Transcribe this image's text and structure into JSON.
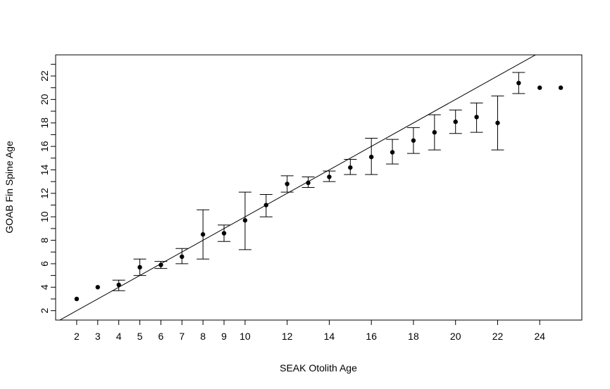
{
  "chart_data": {
    "type": "scatter",
    "title": "",
    "xlabel": "SEAK Otolith Age",
    "ylabel": "GOAB Fin Spine Age",
    "xlim": [
      1,
      26
    ],
    "ylim": [
      1.2,
      23.8
    ],
    "xticks": [
      2,
      3,
      4,
      5,
      6,
      7,
      8,
      9,
      10,
      12,
      14,
      16,
      18,
      20,
      22,
      24
    ],
    "yticks_labeled": [
      2,
      4,
      6,
      8,
      10,
      12,
      14,
      16,
      18,
      20,
      22
    ],
    "yticks_minor": [
      3,
      5,
      7,
      9,
      11,
      13,
      15,
      17,
      19,
      21,
      23
    ],
    "reference_line": {
      "label": "1:1 line",
      "slope": 1,
      "intercept": 0
    },
    "points": [
      {
        "x": 2,
        "y": 3.0,
        "lo": null,
        "hi": null
      },
      {
        "x": 3,
        "y": 4.0,
        "lo": null,
        "hi": null
      },
      {
        "x": 4,
        "y": 4.2,
        "lo": 3.7,
        "hi": 4.6
      },
      {
        "x": 5,
        "y": 5.7,
        "lo": 5.0,
        "hi": 6.4
      },
      {
        "x": 6,
        "y": 5.9,
        "lo": 5.6,
        "hi": 6.2
      },
      {
        "x": 7,
        "y": 6.6,
        "lo": 6.0,
        "hi": 7.3
      },
      {
        "x": 8,
        "y": 8.5,
        "lo": 6.4,
        "hi": 10.6
      },
      {
        "x": 9,
        "y": 8.6,
        "lo": 7.9,
        "hi": 9.3
      },
      {
        "x": 10,
        "y": 9.7,
        "lo": 7.2,
        "hi": 12.1
      },
      {
        "x": 11,
        "y": 11.0,
        "lo": 10.0,
        "hi": 11.9
      },
      {
        "x": 12,
        "y": 12.8,
        "lo": 12.1,
        "hi": 13.5
      },
      {
        "x": 13,
        "y": 12.9,
        "lo": 12.5,
        "hi": 13.4
      },
      {
        "x": 14,
        "y": 13.4,
        "lo": 13.0,
        "hi": 13.9
      },
      {
        "x": 15,
        "y": 14.2,
        "lo": 13.6,
        "hi": 14.9
      },
      {
        "x": 16,
        "y": 15.1,
        "lo": 13.6,
        "hi": 16.7
      },
      {
        "x": 17,
        "y": 15.5,
        "lo": 14.5,
        "hi": 16.6
      },
      {
        "x": 18,
        "y": 16.5,
        "lo": 15.4,
        "hi": 17.6
      },
      {
        "x": 19,
        "y": 17.2,
        "lo": 15.7,
        "hi": 18.7
      },
      {
        "x": 20,
        "y": 18.1,
        "lo": 17.1,
        "hi": 19.1
      },
      {
        "x": 21,
        "y": 18.5,
        "lo": 17.2,
        "hi": 19.7
      },
      {
        "x": 22,
        "y": 18.0,
        "lo": 15.7,
        "hi": 20.3
      },
      {
        "x": 23,
        "y": 21.4,
        "lo": 20.5,
        "hi": 22.3
      },
      {
        "x": 24,
        "y": 21.0,
        "lo": null,
        "hi": null
      },
      {
        "x": 25,
        "y": 21.0,
        "lo": null,
        "hi": null
      }
    ]
  }
}
